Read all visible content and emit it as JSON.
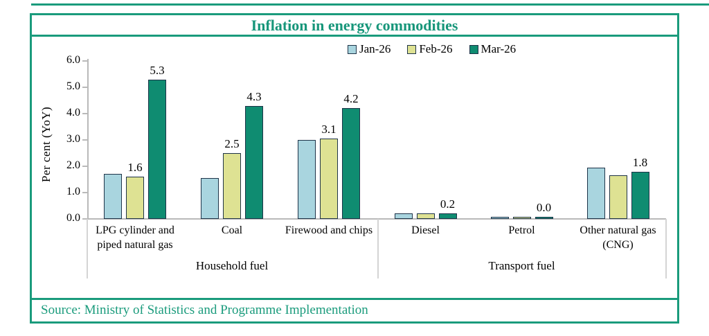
{
  "frame": {
    "title": "Inflation in energy commodities",
    "source": "Source: Ministry of Statistics and Programme Implementation",
    "accent_color": "#1A9B7C"
  },
  "chart_data": {
    "type": "bar",
    "title": "Inflation in energy commodities",
    "ylabel": "Per cent (YoY)",
    "ylim": [
      0,
      6
    ],
    "ytick_labels": [
      "0.0",
      "1.0",
      "2.0",
      "3.0",
      "4.0",
      "5.0",
      "6.0"
    ],
    "grid": false,
    "legend_position": "top-center",
    "categories": [
      "LPG cylinder and piped natural gas",
      "Coal",
      "Firewood and chips",
      "Diesel",
      "Petrol",
      "Other natural gas (CNG)"
    ],
    "groups": [
      {
        "label": "Household fuel",
        "category_indexes": [
          0,
          1,
          2
        ]
      },
      {
        "label": "Transport fuel",
        "category_indexes": [
          3,
          4,
          5
        ]
      }
    ],
    "series": [
      {
        "name": "Jan-26",
        "color": "#A9D5DF",
        "values": [
          1.7,
          1.55,
          3.0,
          0.2,
          0.05,
          1.95
        ]
      },
      {
        "name": "Feb-26",
        "color": "#DEE293",
        "values": [
          1.6,
          2.5,
          3.05,
          0.2,
          0.05,
          1.65
        ]
      },
      {
        "name": "Mar-26",
        "color": "#0F8C71",
        "values": [
          5.3,
          4.3,
          4.2,
          0.2,
          0.05,
          1.8
        ]
      }
    ],
    "data_labels": [
      {
        "category": 0,
        "series": 1,
        "text": "1.6"
      },
      {
        "category": 0,
        "series": 2,
        "text": "5.3"
      },
      {
        "category": 1,
        "series": 1,
        "text": "2.5"
      },
      {
        "category": 1,
        "series": 2,
        "text": "4.3"
      },
      {
        "category": 2,
        "series": 1,
        "text": "3.1"
      },
      {
        "category": 2,
        "series": 2,
        "text": "4.2"
      },
      {
        "category": 3,
        "series": 2,
        "text": "0.2"
      },
      {
        "category": 4,
        "series": 2,
        "text": "0.0"
      },
      {
        "category": 5,
        "series": 2,
        "text": "1.8"
      }
    ],
    "bar_outline_color": "#1E3348",
    "axis_color": "#B9B9B9",
    "label_color": "#000000"
  }
}
